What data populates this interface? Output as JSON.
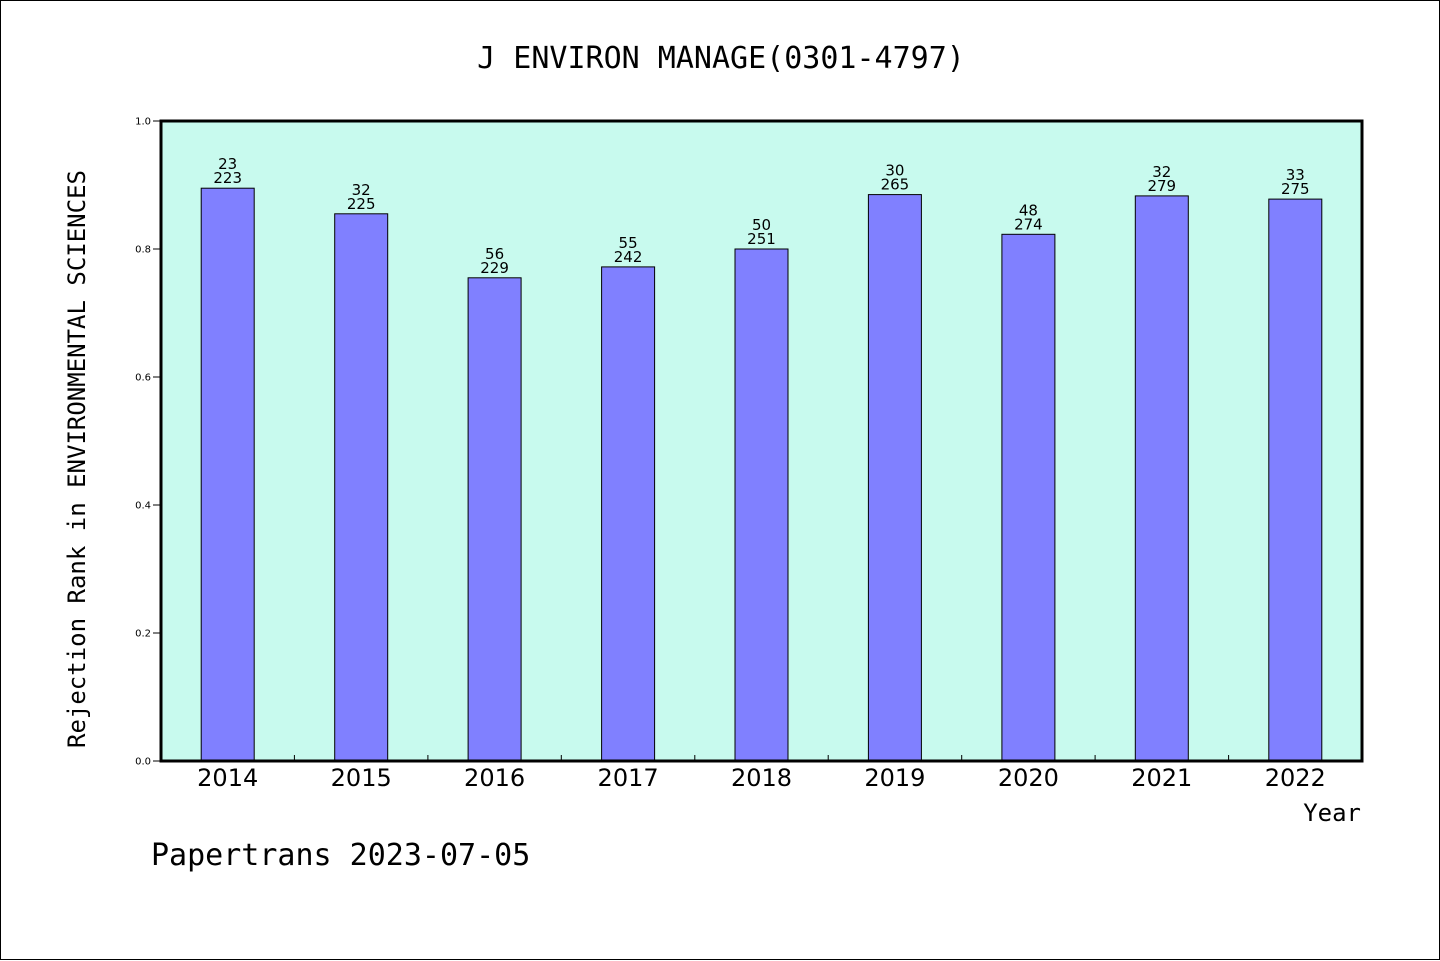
{
  "chart_data": {
    "type": "bar",
    "title": "J ENVIRON MANAGE(0301-4797)",
    "xlabel": "Year",
    "ylabel": "Rejection Rank in ENVIRONMENTAL SCIENCES",
    "categories": [
      "2014",
      "2015",
      "2016",
      "2017",
      "2018",
      "2019",
      "2020",
      "2021",
      "2022"
    ],
    "values": [
      0.895,
      0.855,
      0.755,
      0.772,
      0.8,
      0.885,
      0.823,
      0.883,
      0.878
    ],
    "bar_labels": [
      [
        "23",
        "223"
      ],
      [
        "32",
        "225"
      ],
      [
        "56",
        "229"
      ],
      [
        "55",
        "242"
      ],
      [
        "50",
        "251"
      ],
      [
        "30",
        "265"
      ],
      [
        "48",
        "274"
      ],
      [
        "32",
        "279"
      ],
      [
        "33",
        "275"
      ]
    ],
    "ylim": [
      0,
      1.0
    ],
    "yticks": [
      "0.0",
      "0.2",
      "0.4",
      "0.6",
      "0.8",
      "1.0"
    ],
    "grid": false,
    "colors": {
      "plot_background": "#c8faee",
      "bar_fill": "#8080ff",
      "bar_stroke": "#000000"
    }
  },
  "footer": {
    "text": "Papertrans 2023-07-05"
  }
}
